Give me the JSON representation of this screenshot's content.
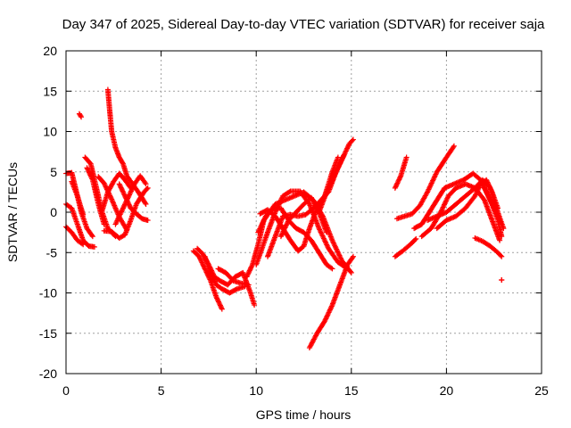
{
  "chart_data": {
    "type": "scatter",
    "title": "Day 347 of 2025, Sidereal Day-to-day VTEC variation (SDTVAR) for receiver saja",
    "xlabel": "GPS time / hours",
    "ylabel": "SDTVAR / TECUs",
    "xlim": [
      0,
      25
    ],
    "ylim": [
      -20,
      20
    ],
    "xticks": [
      0,
      5,
      10,
      15,
      20,
      25
    ],
    "yticks": [
      -20,
      -15,
      -10,
      -5,
      0,
      5,
      10,
      15,
      20
    ],
    "grid": true,
    "marker": "+",
    "color": "#ff0000",
    "tracks": [
      [
        [
          0.0,
          4.8
        ],
        [
          0.3,
          4.9
        ],
        [
          0.5,
          3.0
        ],
        [
          0.8,
          0.0
        ],
        [
          1.1,
          -2.0
        ],
        [
          1.4,
          -3.0
        ]
      ],
      [
        [
          0.0,
          1.0
        ],
        [
          0.3,
          0.5
        ],
        [
          0.6,
          -1.5
        ],
        [
          0.9,
          -3.5
        ],
        [
          1.2,
          -4.2
        ],
        [
          1.5,
          -4.3
        ]
      ],
      [
        [
          0.0,
          -1.8
        ],
        [
          0.3,
          -2.5
        ],
        [
          0.6,
          -3.5
        ],
        [
          0.9,
          -4.0
        ]
      ],
      [
        [
          0.3,
          3.8
        ],
        [
          0.6,
          2.0
        ],
        [
          0.9,
          -0.3
        ]
      ],
      [
        [
          0.7,
          12.2
        ],
        [
          0.8,
          11.8
        ]
      ],
      [
        [
          1.0,
          6.8
        ],
        [
          1.3,
          6.0
        ],
        [
          1.6,
          3.0
        ],
        [
          1.9,
          0.0
        ],
        [
          2.2,
          -2.0
        ],
        [
          2.6,
          -3.0
        ]
      ],
      [
        [
          1.1,
          5.5
        ],
        [
          1.4,
          4.0
        ],
        [
          1.7,
          1.0
        ],
        [
          2.0,
          -1.5
        ]
      ],
      [
        [
          1.7,
          4.4
        ],
        [
          2.0,
          3.6
        ],
        [
          2.4,
          1.6
        ],
        [
          2.8,
          -0.6
        ],
        [
          3.2,
          -2.2
        ]
      ],
      [
        [
          2.2,
          15.2
        ],
        [
          2.3,
          12.5
        ],
        [
          2.4,
          10.0
        ],
        [
          2.6,
          8.0
        ],
        [
          2.8,
          6.8
        ],
        [
          3.0,
          6.0
        ],
        [
          3.2,
          4.5
        ],
        [
          3.5,
          3.5
        ],
        [
          3.8,
          2.5
        ],
        [
          4.2,
          1.0
        ]
      ],
      [
        [
          1.9,
          0.2
        ],
        [
          2.2,
          2.5
        ],
        [
          2.5,
          3.8
        ],
        [
          2.8,
          4.8
        ],
        [
          3.1,
          4.0
        ],
        [
          3.4,
          3.0
        ]
      ],
      [
        [
          2.0,
          -2.3
        ],
        [
          2.4,
          -2.4
        ],
        [
          2.8,
          -3.2
        ],
        [
          3.1,
          -2.8
        ],
        [
          3.4,
          -1.0
        ],
        [
          3.7,
          1.0
        ],
        [
          4.1,
          2.5
        ],
        [
          4.3,
          3.0
        ]
      ],
      [
        [
          2.8,
          3.5
        ],
        [
          3.1,
          2.0
        ],
        [
          3.4,
          0.5
        ],
        [
          3.7,
          -0.2
        ],
        [
          4.0,
          -0.8
        ],
        [
          4.3,
          -1.0
        ]
      ],
      [
        [
          2.6,
          -1.5
        ],
        [
          3.0,
          0.5
        ],
        [
          3.3,
          2.0
        ],
        [
          3.6,
          3.5
        ],
        [
          3.9,
          4.5
        ],
        [
          4.2,
          3.5
        ]
      ],
      [
        [
          6.7,
          -4.8
        ],
        [
          7.0,
          -5.5
        ],
        [
          7.3,
          -7.0
        ],
        [
          7.6,
          -8.5
        ],
        [
          7.9,
          -10.5
        ],
        [
          8.2,
          -12.0
        ]
      ],
      [
        [
          6.9,
          -4.5
        ],
        [
          7.2,
          -5.2
        ],
        [
          7.5,
          -6.5
        ],
        [
          7.8,
          -8.0
        ],
        [
          8.1,
          -8.5
        ],
        [
          8.5,
          -9.0
        ],
        [
          8.9,
          -8.0
        ],
        [
          9.3,
          -7.5
        ],
        [
          9.7,
          -10.0
        ],
        [
          9.9,
          -11.5
        ]
      ],
      [
        [
          7.3,
          -5.5
        ],
        [
          7.6,
          -7.5
        ],
        [
          7.9,
          -9.0
        ],
        [
          8.2,
          -9.5
        ],
        [
          8.6,
          -10.0
        ],
        [
          9.0,
          -9.5
        ],
        [
          9.4,
          -9.2
        ]
      ],
      [
        [
          8.0,
          -7.0
        ],
        [
          8.4,
          -7.5
        ],
        [
          8.8,
          -8.5
        ],
        [
          9.2,
          -8.8
        ],
        [
          9.6,
          -9.0
        ]
      ],
      [
        [
          9.5,
          -8.0
        ],
        [
          9.8,
          -6.5
        ],
        [
          10.1,
          -4.0
        ],
        [
          10.4,
          -1.0
        ],
        [
          10.7,
          0.0
        ],
        [
          11.0,
          1.0
        ],
        [
          11.5,
          1.5
        ],
        [
          12.0,
          2.0
        ],
        [
          12.5,
          2.5
        ],
        [
          13.0,
          1.5
        ],
        [
          13.5,
          -0.5
        ],
        [
          14.0,
          -3.5
        ],
        [
          14.5,
          -6.0
        ],
        [
          15.0,
          -7.5
        ]
      ],
      [
        [
          10.0,
          -6.5
        ],
        [
          10.3,
          -4.5
        ],
        [
          10.6,
          -2.5
        ],
        [
          11.0,
          0.0
        ],
        [
          11.4,
          2.0
        ],
        [
          11.8,
          2.6
        ],
        [
          12.3,
          2.6
        ],
        [
          12.8,
          1.0
        ],
        [
          13.3,
          -2.0
        ],
        [
          13.8,
          -4.5
        ],
        [
          14.3,
          -6.2
        ],
        [
          14.8,
          -7.0
        ]
      ],
      [
        [
          10.1,
          -2.5
        ],
        [
          10.5,
          -0.5
        ],
        [
          10.9,
          0.5
        ],
        [
          11.3,
          0.5
        ],
        [
          11.7,
          -1.0
        ],
        [
          12.1,
          -2.0
        ],
        [
          12.5,
          -2.5
        ],
        [
          12.9,
          -3.5
        ],
        [
          13.3,
          -5.0
        ],
        [
          13.7,
          -6.5
        ],
        [
          14.0,
          -7.0
        ]
      ],
      [
        [
          10.6,
          -5.5
        ],
        [
          11.0,
          -3.0
        ],
        [
          11.4,
          -0.5
        ],
        [
          11.8,
          -0.3
        ],
        [
          12.2,
          -0.5
        ],
        [
          12.6,
          -0.3
        ],
        [
          13.0,
          0.5
        ],
        [
          13.4,
          1.5
        ],
        [
          13.8,
          2.5
        ],
        [
          14.2,
          5.0
        ],
        [
          14.6,
          7.0
        ]
      ],
      [
        [
          10.2,
          -0.2
        ],
        [
          10.6,
          0.3
        ],
        [
          11.0,
          -0.5
        ],
        [
          11.4,
          -2.0
        ],
        [
          11.8,
          -3.5
        ],
        [
          12.2,
          -4.8
        ],
        [
          12.5,
          -4.2
        ],
        [
          12.8,
          -2.0
        ],
        [
          13.2,
          0.5
        ],
        [
          13.6,
          2.0
        ],
        [
          14.0,
          5.0
        ],
        [
          14.3,
          6.8
        ]
      ],
      [
        [
          11.3,
          -3.0
        ],
        [
          11.7,
          -1.0
        ],
        [
          12.1,
          0.0
        ],
        [
          12.5,
          1.0
        ],
        [
          12.9,
          1.8
        ],
        [
          13.3,
          0.0
        ],
        [
          13.7,
          -2.5
        ]
      ],
      [
        [
          12.8,
          -16.8
        ],
        [
          13.2,
          -15.0
        ],
        [
          13.6,
          -13.5
        ],
        [
          14.0,
          -11.5
        ],
        [
          14.4,
          -9.0
        ],
        [
          14.8,
          -6.5
        ],
        [
          15.1,
          -5.5
        ]
      ],
      [
        [
          13.3,
          0.0
        ],
        [
          13.7,
          2.5
        ],
        [
          14.1,
          4.5
        ],
        [
          14.5,
          6.5
        ],
        [
          14.9,
          8.5
        ],
        [
          15.1,
          9.0
        ]
      ],
      [
        [
          17.3,
          3.0
        ],
        [
          17.6,
          4.5
        ],
        [
          17.9,
          6.8
        ]
      ],
      [
        [
          17.4,
          -0.8
        ],
        [
          17.8,
          -0.5
        ],
        [
          18.2,
          -0.2
        ],
        [
          18.6,
          0.8
        ],
        [
          19.0,
          2.5
        ],
        [
          19.5,
          5.0
        ],
        [
          20.0,
          6.8
        ],
        [
          20.4,
          8.2
        ]
      ],
      [
        [
          17.3,
          -5.5
        ],
        [
          17.7,
          -4.8
        ],
        [
          18.1,
          -4.0
        ],
        [
          18.4,
          -3.3
        ]
      ],
      [
        [
          18.3,
          -2.0
        ],
        [
          18.7,
          -1.5
        ],
        [
          19.1,
          0.0
        ],
        [
          19.5,
          1.5
        ],
        [
          19.9,
          3.0
        ],
        [
          20.4,
          3.5
        ],
        [
          20.9,
          4.0
        ],
        [
          21.4,
          4.8
        ],
        [
          21.8,
          4.0
        ],
        [
          22.2,
          2.0
        ],
        [
          22.6,
          0.0
        ],
        [
          22.9,
          -1.5
        ]
      ],
      [
        [
          18.7,
          -3.0
        ],
        [
          19.2,
          -2.0
        ],
        [
          19.7,
          0.0
        ],
        [
          20.1,
          2.0
        ],
        [
          20.5,
          3.0
        ],
        [
          21.0,
          3.5
        ],
        [
          21.5,
          3.0
        ],
        [
          22.0,
          1.5
        ],
        [
          22.4,
          -1.0
        ],
        [
          22.8,
          -3.5
        ]
      ],
      [
        [
          19.0,
          -1.0
        ],
        [
          19.5,
          -0.5
        ],
        [
          20.0,
          0.0
        ],
        [
          20.5,
          1.0
        ],
        [
          21.0,
          2.0
        ],
        [
          21.5,
          3.0
        ],
        [
          21.9,
          4.0
        ],
        [
          22.3,
          3.0
        ],
        [
          22.7,
          0.0
        ],
        [
          23.0,
          -2.0
        ]
      ],
      [
        [
          19.5,
          -2.0
        ],
        [
          20.0,
          -1.0
        ],
        [
          20.5,
          -0.5
        ],
        [
          21.0,
          0.5
        ],
        [
          21.5,
          2.0
        ],
        [
          21.8,
          3.5
        ],
        [
          22.1,
          4.0
        ],
        [
          22.4,
          2.5
        ],
        [
          22.7,
          0.5
        ]
      ],
      [
        [
          21.5,
          -3.2
        ],
        [
          21.9,
          -3.6
        ],
        [
          22.3,
          -4.2
        ],
        [
          22.7,
          -5.0
        ],
        [
          22.9,
          -5.5
        ]
      ],
      [
        [
          22.0,
          3.0
        ],
        [
          22.4,
          1.0
        ],
        [
          22.7,
          -1.0
        ],
        [
          22.9,
          -3.0
        ]
      ],
      [
        [
          22.9,
          -8.4
        ],
        [
          22.9,
          -8.4
        ]
      ]
    ]
  }
}
